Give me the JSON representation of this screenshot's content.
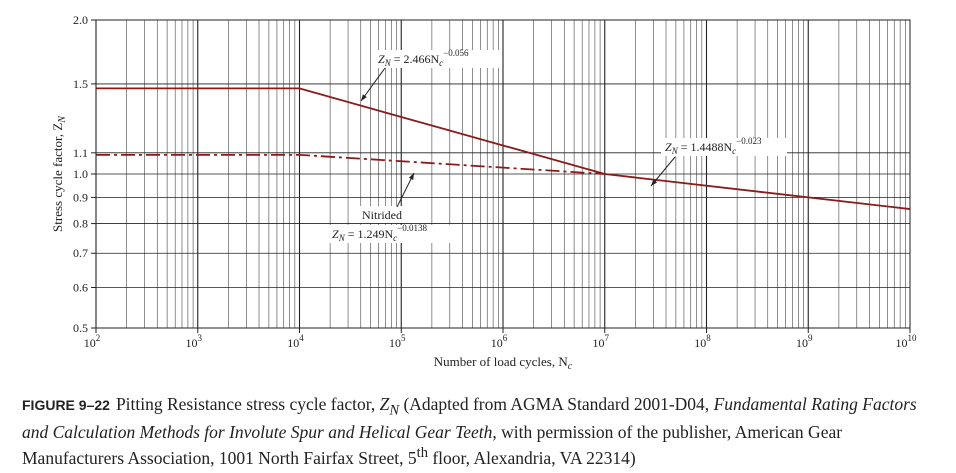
{
  "chart_data": {
    "type": "line",
    "xscale": "log",
    "xlim": [
      100,
      10000000000
    ],
    "ylim": [
      0.5,
      2.0
    ],
    "grid": true,
    "xlabel": "Number of load cycles, N",
    "xlabel_sub": "c",
    "ylabel": "Stress cycle factor, Z",
    "ylabel_sub": "N",
    "x_ticks": [
      {
        "base": "10",
        "exp": "2"
      },
      {
        "base": "10",
        "exp": "3"
      },
      {
        "base": "10",
        "exp": "4"
      },
      {
        "base": "10",
        "exp": "5"
      },
      {
        "base": "10",
        "exp": "6"
      },
      {
        "base": "10",
        "exp": "7"
      },
      {
        "base": "10",
        "exp": "8"
      },
      {
        "base": "10",
        "exp": "9"
      },
      {
        "base": "10",
        "exp": "10"
      }
    ],
    "y_ticks": [
      "0.5",
      "0.6",
      "0.7",
      "0.8",
      "0.9",
      "1.0",
      "1.1",
      "1.5",
      "2.0"
    ],
    "series": [
      {
        "style": "solid",
        "color": "#8b1a1a",
        "points": [
          [
            100,
            1.47
          ],
          [
            10000,
            1.47
          ],
          [
            10000000,
            1.0
          ]
        ]
      },
      {
        "style": "dash-dot",
        "color": "#8b1a1a",
        "points": [
          [
            100,
            1.09
          ],
          [
            10000,
            1.09
          ],
          [
            10000000,
            1.0
          ]
        ]
      },
      {
        "style": "solid",
        "color": "#8b1a1a",
        "points": [
          [
            10000000,
            1.0
          ],
          [
            10000000000,
            0.854
          ]
        ]
      }
    ],
    "annotations": [
      {
        "id": "upper",
        "prefix": "Z",
        "sub": "N",
        "eq": " = 2.466N",
        "sub2": "c",
        "exp": "−0.056"
      },
      {
        "id": "right",
        "prefix": "Z",
        "sub": "N",
        "eq": " = 1.4488N",
        "sub2": "c",
        "exp": "−0.023"
      },
      {
        "id": "nitrided",
        "line1": "Nitrided",
        "prefix": "Z",
        "sub": "N",
        "eq": " = 1.249N",
        "sub2": "c",
        "exp": "−0.0138"
      }
    ]
  },
  "caption": {
    "figure_label": "FIGURE 9–22",
    "text1": "Pitting Resistance stress cycle factor, ",
    "z": "Z",
    "zsub": "N",
    "text2": " (Adapted from AGMA Standard 2001-D04, ",
    "italic": "Fundamental Rating Factors and Calculation Methods for Involute Spur and Helical Gear Teeth",
    "text3": ", with permission of the publisher, American Gear Manufacturers Association, 1001 North Fairfax Street, 5",
    "sup": "th",
    "text4": " floor, Alexandria, VA 22314)"
  }
}
